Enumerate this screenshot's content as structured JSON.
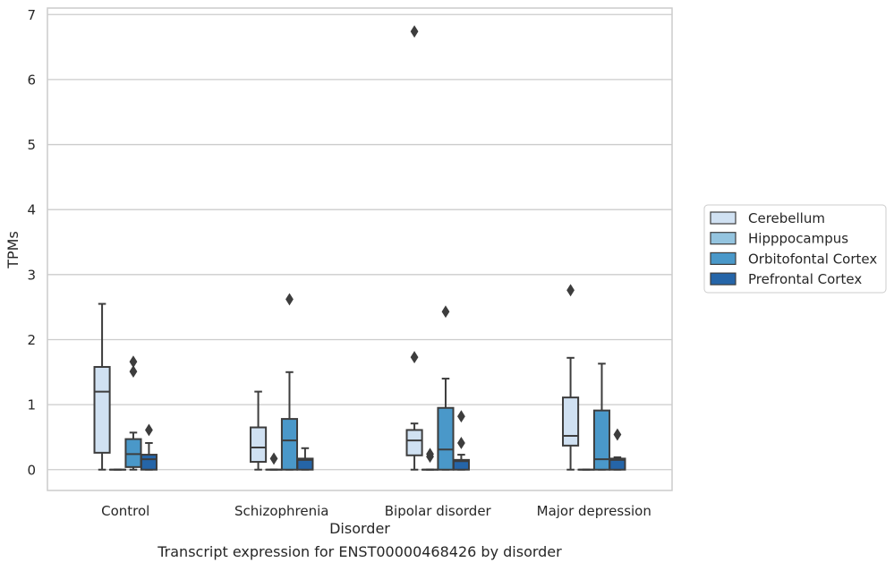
{
  "chart_data": {
    "type": "box",
    "title": "Transcript expression for ENST00000468426 by disorder",
    "xlabel": "Disorder",
    "ylabel": "TPMs",
    "ylim": [
      -0.32,
      7.1
    ],
    "yticks": [
      0,
      1,
      2,
      3,
      4,
      5,
      6,
      7
    ],
    "grid": "horizontal",
    "legend_position": "right",
    "categories": [
      "Control",
      "Schizophrenia",
      "Bipolar disorder",
      "Major depression"
    ],
    "series": [
      {
        "name": "Cerebellum",
        "color": "#d0e1f2",
        "boxes": [
          {
            "whislo": 0.0,
            "q1": 0.26,
            "med": 1.2,
            "q3": 1.58,
            "whishi": 2.55,
            "fliers": []
          },
          {
            "whislo": 0.0,
            "q1": 0.12,
            "med": 0.34,
            "q3": 0.65,
            "whishi": 1.2,
            "fliers": []
          },
          {
            "whislo": 0.0,
            "q1": 0.22,
            "med": 0.45,
            "q3": 0.61,
            "whishi": 0.71,
            "fliers": [
              1.73,
              6.74
            ]
          },
          {
            "whislo": 0.0,
            "q1": 0.37,
            "med": 0.52,
            "q3": 1.11,
            "whishi": 1.72,
            "fliers": [
              2.76
            ]
          }
        ]
      },
      {
        "name": "Hipppocampus",
        "color": "#94c4df",
        "boxes": [
          {
            "whislo": 0.0,
            "q1": 0.0,
            "med": 0.0,
            "q3": 0.0,
            "whishi": 0.0,
            "fliers": []
          },
          {
            "whislo": 0.0,
            "q1": 0.0,
            "med": 0.0,
            "q3": 0.0,
            "whishi": 0.0,
            "fliers": [
              0.17
            ]
          },
          {
            "whislo": 0.0,
            "q1": 0.0,
            "med": 0.0,
            "q3": 0.0,
            "whishi": 0.0,
            "fliers": [
              0.2,
              0.24
            ]
          },
          {
            "whislo": 0.0,
            "q1": 0.0,
            "med": 0.0,
            "q3": 0.0,
            "whishi": 0.0,
            "fliers": []
          }
        ]
      },
      {
        "name": "Orbitofontal Cortex",
        "color": "#4a98c9",
        "boxes": [
          {
            "whislo": 0.0,
            "q1": 0.04,
            "med": 0.24,
            "q3": 0.47,
            "whishi": 0.57,
            "fliers": [
              1.51,
              1.66
            ]
          },
          {
            "whislo": 0.0,
            "q1": 0.0,
            "med": 0.45,
            "q3": 0.78,
            "whishi": 1.5,
            "fliers": [
              2.62
            ]
          },
          {
            "whislo": 0.0,
            "q1": 0.0,
            "med": 0.31,
            "q3": 0.95,
            "whishi": 1.4,
            "fliers": [
              2.43
            ]
          },
          {
            "whislo": 0.0,
            "q1": 0.0,
            "med": 0.16,
            "q3": 0.91,
            "whishi": 1.63,
            "fliers": []
          }
        ]
      },
      {
        "name": "Prefrontal Cortex",
        "color": "#2565a8",
        "boxes": [
          {
            "whislo": 0.0,
            "q1": 0.0,
            "med": 0.16,
            "q3": 0.23,
            "whishi": 0.41,
            "fliers": [
              0.61
            ]
          },
          {
            "whislo": 0.0,
            "q1": 0.0,
            "med": 0.15,
            "q3": 0.17,
            "whishi": 0.33,
            "fliers": []
          },
          {
            "whislo": 0.0,
            "q1": 0.0,
            "med": 0.13,
            "q3": 0.15,
            "whishi": 0.23,
            "fliers": [
              0.41,
              0.82
            ]
          },
          {
            "whislo": 0.0,
            "q1": 0.0,
            "med": 0.15,
            "q3": 0.17,
            "whishi": 0.19,
            "fliers": [
              0.54
            ]
          }
        ]
      }
    ]
  }
}
